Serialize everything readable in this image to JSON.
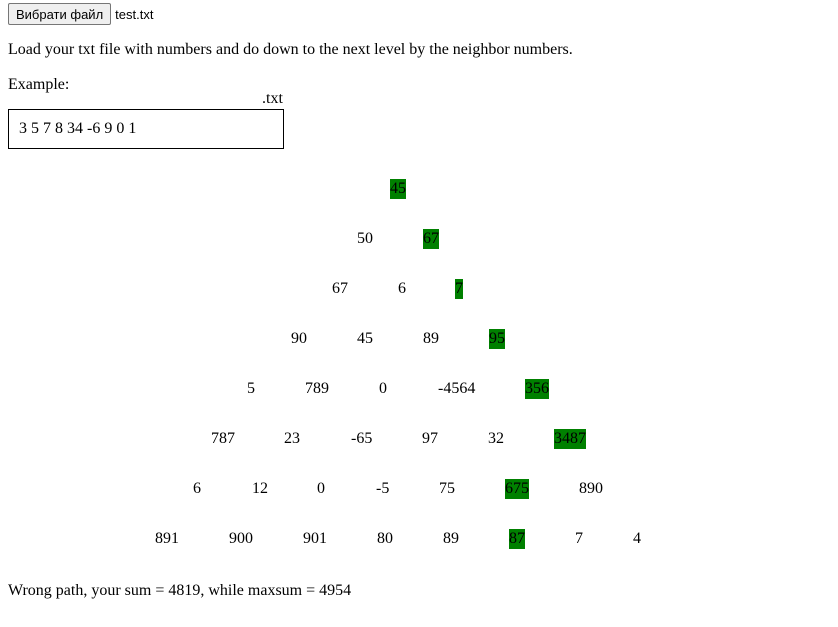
{
  "file_input": {
    "button_label": "Вибрати файл",
    "file_name": "test.txt"
  },
  "instruction": "Load your txt file with numbers and do down to the next level by the neighbor numbers.",
  "example": {
    "label": "Example:",
    "extension": ".txt",
    "content": "3 5 7 8 34 -6 9 0 1"
  },
  "pyramid": {
    "highlight_color": "#008000",
    "rows": [
      {
        "values": [
          "45"
        ],
        "path_index": 0
      },
      {
        "values": [
          "50",
          "67"
        ],
        "path_index": 1
      },
      {
        "values": [
          "67",
          "6",
          "7"
        ],
        "path_index": 2
      },
      {
        "values": [
          "90",
          "45",
          "89",
          "95"
        ],
        "path_index": 3
      },
      {
        "values": [
          "5",
          "789",
          "0",
          "-4564",
          "356"
        ],
        "path_index": 4
      },
      {
        "values": [
          "787",
          "23",
          "-65",
          "97",
          "32",
          "3487"
        ],
        "path_index": 5
      },
      {
        "values": [
          "6",
          "12",
          "0",
          "-5",
          "75",
          "675",
          "890"
        ],
        "path_index": 5
      },
      {
        "values": [
          "891",
          "900",
          "901",
          "80",
          "89",
          "87",
          "7",
          "4"
        ],
        "path_index": 5
      }
    ]
  },
  "result": "Wrong path, your sum = 4819, while maxsum = 4954"
}
